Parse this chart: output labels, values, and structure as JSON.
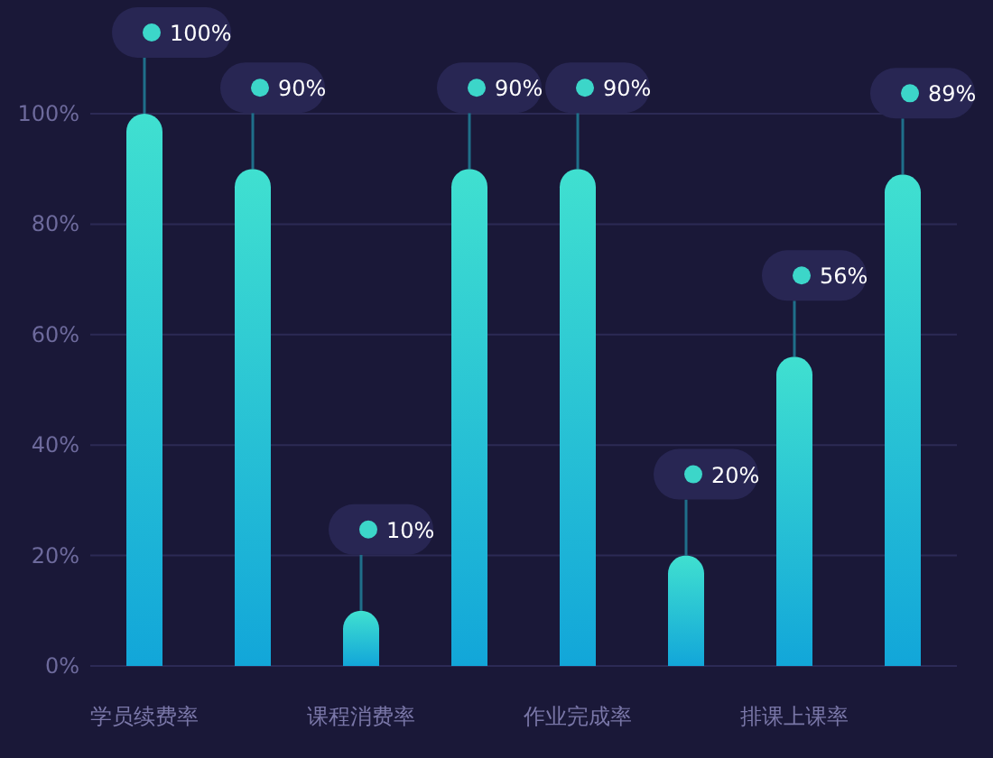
{
  "chart_data": {
    "type": "bar",
    "categories": [
      "学员续费率",
      null,
      "课程消费率",
      null,
      "作业完成率",
      null,
      "排课上课率",
      null
    ],
    "values": [
      100,
      90,
      10,
      90,
      90,
      20,
      56,
      89
    ],
    "value_labels": [
      "100%",
      "90%",
      "10%",
      "90%",
      "90%",
      "20%",
      "56%",
      "89%"
    ],
    "color": "#40e0d0",
    "ylim": [
      0,
      100
    ],
    "yticks": [
      {
        "value": 0,
        "label": "0%"
      },
      {
        "value": 20,
        "label": "20%"
      },
      {
        "value": 40,
        "label": "40%"
      },
      {
        "value": 60,
        "label": "60%"
      },
      {
        "value": 80,
        "label": "80%"
      },
      {
        "value": 100,
        "label": "100%"
      }
    ],
    "grid": "y"
  }
}
